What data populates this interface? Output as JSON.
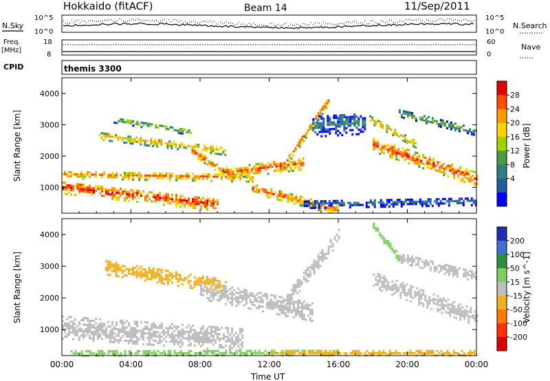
{
  "header": {
    "radar": "Hokkaido (fitACF)",
    "beam": "Beam 14",
    "date": "11/Sep/2011"
  },
  "noise_panel": {
    "left_label": "N.Sky",
    "left_ticks": [
      "10^5",
      "10^0"
    ],
    "right_ticks": [
      "10^5",
      "10^0"
    ],
    "right_label": "N.Search"
  },
  "freq_panel": {
    "left_label_top": "Freq.",
    "left_label_bottom": "[MHz]",
    "left_ticks": [
      "18",
      "8"
    ],
    "right_ticks": [
      "60",
      "0"
    ],
    "right_label": "Nave"
  },
  "cpid_panel": {
    "label": "CPID",
    "value": "themis 3300"
  },
  "chart_data": [
    {
      "type": "heatmap",
      "name": "power",
      "ylabel": "Slant Range [km]",
      "xlabel": "",
      "ylim": [
        180,
        4500
      ],
      "yticks": [
        "1000",
        "2000",
        "3000",
        "4000"
      ],
      "colorbar": {
        "label": "Power [dB]",
        "ticks": [
          "28",
          "24",
          "20",
          "16",
          "12",
          "8",
          "4"
        ],
        "colors": [
          "#e60000",
          "#ff4d00",
          "#ff9900",
          "#ffd200",
          "#a0d200",
          "#4a9a40",
          "#2f7f7f",
          "#1f5fa0",
          "#0000ff"
        ]
      },
      "bands": [
        {
          "t_start": 0.0,
          "t_end": 9.0,
          "r_start": 1050,
          "r_end": 500,
          "width": 420,
          "power": 28
        },
        {
          "t_start": 0.0,
          "t_end": 11.0,
          "r_start": 1450,
          "r_end": 1350,
          "width": 260,
          "power": 24
        },
        {
          "t_start": 2.0,
          "t_end": 9.5,
          "r_start": 2700,
          "r_end": 2200,
          "width": 260,
          "power": 20
        },
        {
          "t_start": 3.0,
          "t_end": 7.5,
          "r_start": 3200,
          "r_end": 2800,
          "width": 200,
          "power": 14
        },
        {
          "t_start": 7.5,
          "t_end": 10.0,
          "r_start": 2200,
          "r_end": 1300,
          "width": 260,
          "power": 26
        },
        {
          "t_start": 9.5,
          "t_end": 14.0,
          "r_start": 1500,
          "r_end": 1800,
          "width": 380,
          "power": 26
        },
        {
          "t_start": 13.0,
          "t_end": 15.5,
          "r_start": 1900,
          "r_end": 3900,
          "width": 280,
          "power": 24
        },
        {
          "t_start": 11.0,
          "t_end": 16.0,
          "r_start": 1000,
          "r_end": 300,
          "width": 300,
          "power": 25
        },
        {
          "t_start": 18.0,
          "t_end": 24.0,
          "r_start": 2400,
          "r_end": 1300,
          "width": 450,
          "power": 27
        },
        {
          "t_start": 17.8,
          "t_end": 20.5,
          "r_start": 3200,
          "r_end": 2400,
          "width": 220,
          "power": 22
        },
        {
          "t_start": 19.5,
          "t_end": 24.0,
          "r_start": 3400,
          "r_end": 2800,
          "width": 220,
          "power": 13
        },
        {
          "t_start": 14.5,
          "t_end": 17.5,
          "r_start": 3000,
          "r_end": 3100,
          "width": 700,
          "power": 7
        },
        {
          "t_start": 14.0,
          "t_end": 24.0,
          "r_start": 500,
          "r_end": 600,
          "width": 250,
          "power": 6
        }
      ]
    },
    {
      "type": "heatmap",
      "name": "velocity",
      "ylabel": "Slant Range [km]",
      "xlabel": "Time UT",
      "ylim": [
        180,
        4500
      ],
      "yticks": [
        "1000",
        "2000",
        "3000",
        "4000"
      ],
      "xlim": [
        0,
        24
      ],
      "xticks": [
        "00:00",
        "04:00",
        "08:00",
        "12:00",
        "16:00",
        "20:00",
        "00:00"
      ],
      "colorbar": {
        "label": "Velocity [m s^-1]",
        "ticks": [
          "200",
          "100",
          "50",
          "15",
          "-15",
          "-50",
          "-100",
          "-200"
        ],
        "colors": [
          "#1f2fb0",
          "#3f6fd0",
          "#2f8f3f",
          "#7fd060",
          "#bebebe",
          "#f0b020",
          "#ff7a00",
          "#ff3000",
          "#e00000"
        ]
      },
      "bands": [
        {
          "t_start": 0.0,
          "t_end": 10.5,
          "r_start": 1100,
          "r_end": 700,
          "width": 700,
          "velocity": 0
        },
        {
          "t_start": 2.5,
          "t_end": 9.5,
          "r_start": 3000,
          "r_end": 2400,
          "width": 450,
          "velocity": -30
        },
        {
          "t_start": 8.0,
          "t_end": 14.5,
          "r_start": 2300,
          "r_end": 1600,
          "width": 600,
          "velocity": 0
        },
        {
          "t_start": 13.0,
          "t_end": 16.0,
          "r_start": 2000,
          "r_end": 4000,
          "width": 450,
          "velocity": 0
        },
        {
          "t_start": 0.5,
          "t_end": 16.0,
          "r_start": 300,
          "r_end": 320,
          "width": 180,
          "velocity": 35
        },
        {
          "t_start": 12.0,
          "t_end": 24.0,
          "r_start": 300,
          "r_end": 300,
          "width": 160,
          "velocity": -40
        },
        {
          "t_start": 18.0,
          "t_end": 24.0,
          "r_start": 2600,
          "r_end": 1400,
          "width": 500,
          "velocity": 0
        },
        {
          "t_start": 19.5,
          "t_end": 24.0,
          "r_start": 3300,
          "r_end": 2700,
          "width": 300,
          "velocity": 0
        },
        {
          "t_start": 18.0,
          "t_end": 19.5,
          "r_start": 4300,
          "r_end": 3300,
          "width": 250,
          "velocity": 40
        }
      ]
    }
  ]
}
